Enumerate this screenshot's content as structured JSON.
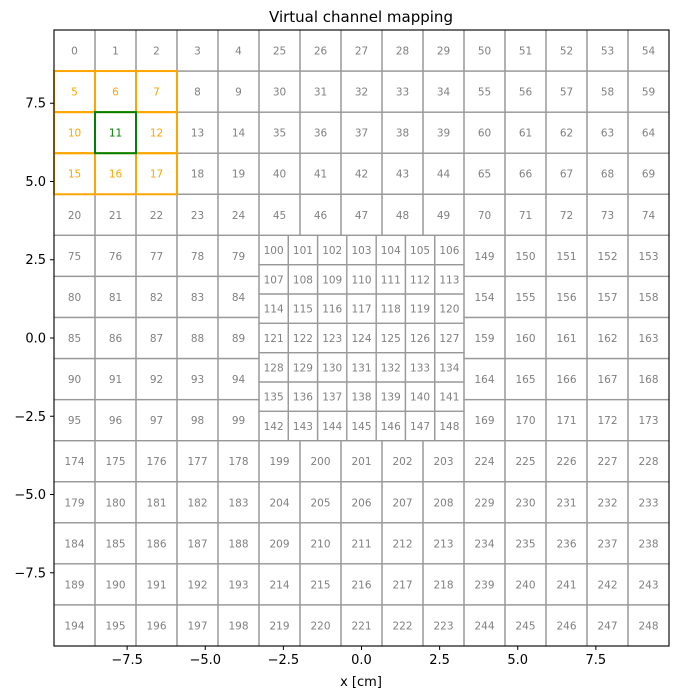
{
  "chart_data": {
    "type": "heatmap",
    "title": "Virtual channel mapping",
    "xlabel": "x [cm]",
    "ylabel": "",
    "xlim": [
      -9.84,
      9.84
    ],
    "ylim": [
      -9.84,
      9.84
    ],
    "grid": false,
    "x_ticks": [
      {
        "value": -7.5,
        "label": "−7.5"
      },
      {
        "value": -5.0,
        "label": "−5.0"
      },
      {
        "value": -2.5,
        "label": "−2.5"
      },
      {
        "value": 0.0,
        "label": "0.0"
      },
      {
        "value": 2.5,
        "label": "2.5"
      },
      {
        "value": 5.0,
        "label": "5.0"
      },
      {
        "value": 7.5,
        "label": "7.5"
      }
    ],
    "y_ticks": [
      {
        "value": 7.5,
        "label": "7.5"
      },
      {
        "value": 5.0,
        "label": "5.0"
      },
      {
        "value": 2.5,
        "label": "2.5"
      },
      {
        "value": 0.0,
        "label": "0.0"
      },
      {
        "value": -2.5,
        "label": "−2.5"
      },
      {
        "value": -5.0,
        "label": "−5.0"
      },
      {
        "value": -7.5,
        "label": "−7.5"
      }
    ],
    "highlight_center": 11,
    "highlight_neighbors": [
      5,
      6,
      7,
      10,
      12,
      15,
      16,
      17
    ],
    "colors": {
      "cell_border": "#999999",
      "cell_text": "#808080",
      "neighbor": "#ffa500",
      "center": "#008000"
    },
    "blocks": [
      {
        "x0": -9.84,
        "x1": -3.28,
        "y1": 9.84,
        "y0": 3.28,
        "cols": 5,
        "rows": 5,
        "start": 0
      },
      {
        "x0": -3.28,
        "x1": 3.28,
        "y1": 9.84,
        "y0": 3.28,
        "cols": 5,
        "rows": 5,
        "start": 25
      },
      {
        "x0": 3.28,
        "x1": 9.84,
        "y1": 9.84,
        "y0": 3.28,
        "cols": 5,
        "rows": 5,
        "start": 50
      },
      {
        "x0": -9.84,
        "x1": -3.28,
        "y1": 3.28,
        "y0": -3.28,
        "cols": 5,
        "rows": 5,
        "start": 75
      },
      {
        "x0": -3.28,
        "x1": 3.28,
        "y1": 3.28,
        "y0": -3.28,
        "cols": 7,
        "rows": 7,
        "start": 100
      },
      {
        "x0": 3.28,
        "x1": 9.84,
        "y1": 3.28,
        "y0": -3.28,
        "cols": 5,
        "rows": 5,
        "start": 149
      },
      {
        "x0": -9.84,
        "x1": -3.28,
        "y1": -3.28,
        "y0": -9.84,
        "cols": 5,
        "rows": 5,
        "start": 174
      },
      {
        "x0": -3.28,
        "x1": 3.28,
        "y1": -3.28,
        "y0": -9.84,
        "cols": 5,
        "rows": 5,
        "start": 199
      },
      {
        "x0": 3.28,
        "x1": 9.84,
        "y1": -3.28,
        "y0": -9.84,
        "cols": 5,
        "rows": 5,
        "start": 224
      }
    ]
  }
}
